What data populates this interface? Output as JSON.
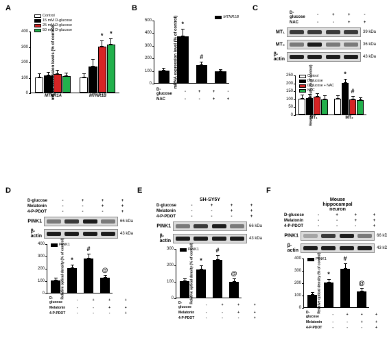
{
  "colors": {
    "white": "#ffffff",
    "black": "#000000",
    "red": "#d62425",
    "green": "#22b04c"
  },
  "panels": {
    "A": {
      "ylabel": "mRNA expression levels\n(% of control)",
      "ylim": 400,
      "ytick": 100,
      "legend": [
        "Control",
        "15 mM D-glucose",
        "25 mM D-glucose",
        "50 mM D-glucose"
      ],
      "legend_colors": [
        "#ffffff",
        "#000000",
        "#d62425",
        "#22b04c"
      ],
      "groups": [
        {
          "label": "MTNR1A",
          "bars": [
            100,
            110,
            120,
            105
          ],
          "err": [
            25,
            25,
            25,
            25
          ],
          "sig": [
            "",
            "",
            "",
            ""
          ]
        },
        {
          "label": "MTNR1B",
          "bars": [
            100,
            170,
            300,
            310
          ],
          "err": [
            25,
            50,
            40,
            40
          ],
          "sig": [
            "",
            "",
            "*",
            "*"
          ]
        }
      ]
    },
    "B": {
      "ylabel": "mRNA expression level\n(% of control)",
      "ylim": 500,
      "ytick": 100,
      "series_label": "MTNR1B",
      "treatments": [
        [
          "D-glucose",
          "-",
          "+",
          "+",
          "-"
        ],
        [
          "NAC",
          "-",
          "-",
          "+",
          "+"
        ]
      ],
      "bars": [
        100,
        370,
        140,
        95
      ],
      "err": [
        20,
        60,
        30,
        15
      ],
      "sig": [
        "",
        "*",
        "#",
        ""
      ]
    },
    "C": {
      "treatments": [
        [
          "D-glucose",
          "-",
          "+",
          "+",
          "-"
        ],
        [
          "NAC",
          "-",
          "-",
          "+",
          "+"
        ]
      ],
      "blots": [
        {
          "label": "MT₁",
          "kda": "39 kDa",
          "bands": [
            "m",
            "m",
            "m",
            "m"
          ]
        },
        {
          "label": "MT₂",
          "kda": "36 kDa",
          "bands": [
            "l",
            "d",
            "l",
            "l"
          ]
        },
        {
          "label": "β-actin",
          "kda": "43 kDa",
          "bands": [
            "d",
            "d",
            "d",
            "d"
          ]
        }
      ],
      "quant": {
        "ylabel": "Relative optical density\n(% of control)",
        "ylim": 250,
        "ytick": 50,
        "legend": [
          "Control",
          "D-glucose",
          "D-glucose + NAC",
          "NAC"
        ],
        "legend_colors": [
          "#ffffff",
          "#000000",
          "#d62425",
          "#22b04c"
        ],
        "groups": [
          {
            "label": "MT₁",
            "bars": [
              100,
              105,
              110,
              95
            ],
            "err": [
              25,
              25,
              25,
              25
            ],
            "sig": [
              "",
              "",
              "",
              ""
            ]
          },
          {
            "label": "MT₂",
            "bars": [
              100,
              200,
              95,
              90
            ],
            "err": [
              20,
              25,
              20,
              20
            ],
            "sig": [
              "",
              "*",
              "#",
              ""
            ]
          }
        ]
      }
    },
    "D": {
      "title": "",
      "treatments": [
        [
          "D-glucose",
          "-",
          "+",
          "+",
          "+"
        ],
        [
          "Melatonin",
          "-",
          "-",
          "+",
          "+"
        ],
        [
          "4-P-PDOT",
          "-",
          "-",
          "-",
          "+"
        ]
      ],
      "blots": [
        {
          "label": "PINK1",
          "kda": "66 kDa",
          "bands": [
            "l",
            "m",
            "d",
            "l"
          ]
        },
        {
          "label": "β-actin",
          "kda": "43 kDa",
          "bands": [
            "d",
            "d",
            "d",
            "d"
          ]
        }
      ],
      "quant": {
        "ylabel": "Relative optical density\n(% of control)",
        "ylim": 400,
        "ytick": 100,
        "series_label": "PINK1",
        "bars": [
          100,
          200,
          280,
          120
        ],
        "err": [
          20,
          30,
          35,
          25
        ],
        "sig": [
          "",
          "*",
          "#",
          "@"
        ]
      }
    },
    "E": {
      "title": "SH-SY5Y",
      "treatments": [
        [
          "D-glucose",
          "-",
          "+",
          "+",
          "+"
        ],
        [
          "Melatonin",
          "-",
          "-",
          "+",
          "+"
        ],
        [
          "4-P-PDOT",
          "-",
          "-",
          "-",
          "+"
        ]
      ],
      "blots": [
        {
          "label": "PINK1",
          "kda": "66 kDa",
          "bands": [
            "l",
            "m",
            "d",
            "l"
          ]
        },
        {
          "label": "β-actin",
          "kda": "43 kDa",
          "bands": [
            "d",
            "d",
            "d",
            "d"
          ]
        }
      ],
      "quant": {
        "ylabel": "Relative optical density\n(% of control)",
        "ylim": 300,
        "ytick": 100,
        "series_label": "PINK1",
        "bars": [
          100,
          170,
          230,
          95
        ],
        "err": [
          15,
          25,
          30,
          20
        ],
        "sig": [
          "",
          "*",
          "#",
          "@"
        ]
      }
    },
    "F": {
      "title": "Mouse\nhippocampal\nneuron",
      "treatments": [
        [
          "D-glucose",
          "-",
          "+",
          "+",
          "+"
        ],
        [
          "Melatonin",
          "-",
          "-",
          "+",
          "+"
        ],
        [
          "4-P-PDOT",
          "-",
          "-",
          "-",
          "+"
        ]
      ],
      "blots": [
        {
          "label": "PINK1",
          "kda": "66 kDa",
          "bands": [
            "vl",
            "m",
            "d",
            "l"
          ]
        },
        {
          "label": "β-actin",
          "kda": "43 kDa",
          "bands": [
            "d",
            "d",
            "d",
            "d"
          ]
        }
      ],
      "quant": {
        "ylabel": "Relative optical density\n(% of control)",
        "ylim": 400,
        "ytick": 100,
        "series_label": "PINK1",
        "bars": [
          100,
          200,
          310,
          130
        ],
        "err": [
          20,
          30,
          45,
          25
        ],
        "sig": [
          "",
          "*",
          "#",
          "@"
        ]
      }
    }
  }
}
